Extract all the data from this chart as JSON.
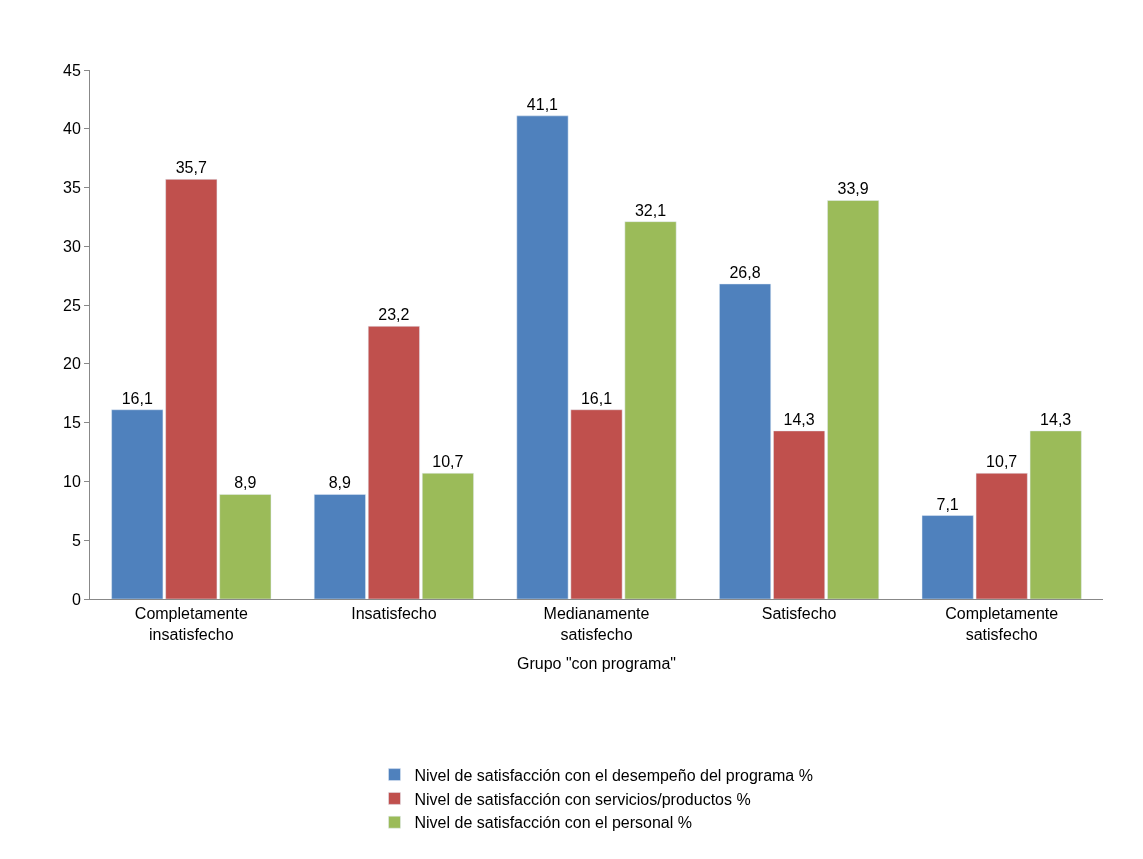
{
  "chart_data": {
    "type": "bar",
    "xlabel": "Grupo \"con programa\"",
    "categories": [
      "Completamente insatisfecho",
      "Insatisfecho",
      "Medianamente satisfecho",
      "Satisfecho",
      "Completamente satisfecho"
    ],
    "series": [
      {
        "name": "Nivel de satisfacción con el desempeño del programa %",
        "color": "#4f81bd",
        "values": [
          16.1,
          8.9,
          41.1,
          26.8,
          7.1
        ],
        "value_labels": [
          "16,1",
          "8,9",
          "41,1",
          "26,8",
          "7,1"
        ]
      },
      {
        "name": "Nivel de satisfacción con servicios/productos %",
        "color": "#c0504d",
        "values": [
          35.7,
          23.2,
          16.1,
          14.3,
          10.7
        ],
        "value_labels": [
          "35,7",
          "23,2",
          "16,1",
          "14,3",
          "10,7"
        ]
      },
      {
        "name": "Nivel de satisfacción con el personal %",
        "color": "#9bbb59",
        "values": [
          8.9,
          10.7,
          32.1,
          33.9,
          14.3
        ],
        "value_labels": [
          "8,9",
          "10,7",
          "32,1",
          "33,9",
          "14,3"
        ]
      }
    ],
    "ylim": [
      0,
      45
    ],
    "yticks": [
      0,
      5,
      10,
      15,
      20,
      25,
      30,
      35,
      40,
      45
    ],
    "grid": false,
    "legend": "bottom"
  }
}
